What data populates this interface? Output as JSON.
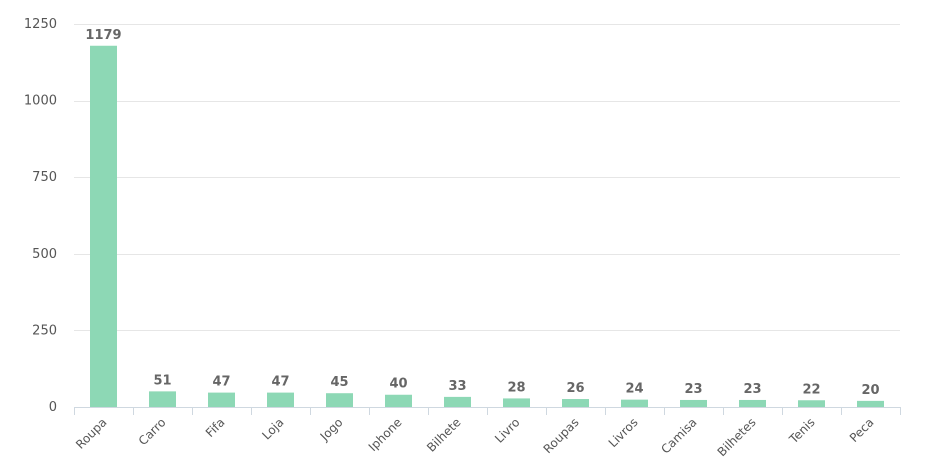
{
  "chart_data": {
    "type": "bar",
    "categories": [
      "Roupa",
      "Carro",
      "Fifa",
      "Loja",
      "Jogo",
      "Iphone",
      "Bilhete",
      "Livro",
      "Roupas",
      "Livros",
      "Camisa",
      "Bilhetes",
      "Tenis",
      "Peca"
    ],
    "values": [
      1179,
      51,
      47,
      47,
      45,
      40,
      33,
      28,
      26,
      24,
      23,
      23,
      22,
      20
    ],
    "ylim": [
      0,
      1250
    ],
    "yticks": [
      0,
      250,
      500,
      750,
      1000,
      1250
    ],
    "grid": true,
    "bar_color": "#8dd8b5"
  }
}
